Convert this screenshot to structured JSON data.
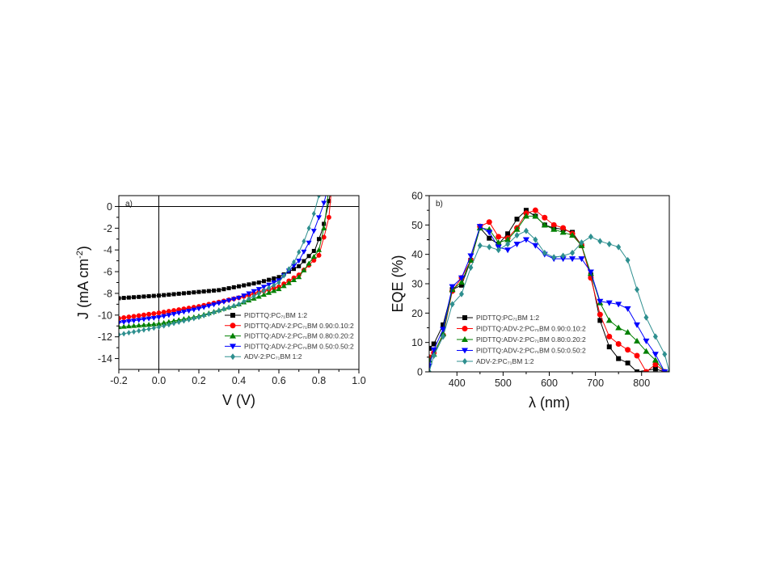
{
  "chart_data": [
    {
      "type": "line",
      "panel_label": "a)",
      "xlabel": "V (V)",
      "ylabel": "J (mA cm",
      "ylabel_sup": "-2",
      "ylabel_end": ")",
      "xlim": [
        -0.2,
        1.0
      ],
      "ylim": [
        -15,
        1
      ],
      "xticks": [
        -0.2,
        0.0,
        0.2,
        0.4,
        0.6,
        0.8,
        1.0
      ],
      "xtick_labels": [
        "-0.2",
        "0.0",
        "0.2",
        "0.4",
        "0.6",
        "0.8",
        "1.0"
      ],
      "yticks": [
        0,
        -2,
        -4,
        -6,
        -8,
        -10,
        -12,
        -14
      ],
      "ytick_labels": [
        "0",
        "-2",
        "-4",
        "-6",
        "-8",
        "-10",
        "-12",
        "-14"
      ],
      "zero_lines": true,
      "grid": false,
      "legend_position": "bottom-right",
      "series": [
        {
          "name": "PIDTTQ:PC₇₁BM 1:2",
          "color": "#000000",
          "marker": "square",
          "x": [
            -0.2,
            0.0,
            0.3,
            0.5,
            0.6,
            0.7,
            0.78,
            0.82,
            0.845,
            0.855
          ],
          "y": [
            -8.45,
            -8.2,
            -7.7,
            -7.0,
            -6.5,
            -5.5,
            -4.0,
            -2.0,
            0.0,
            1.0
          ]
        },
        {
          "name": "PIDTTQ:ADV-2:PC₇₁BM 0.90:0.10:2",
          "color": "#ff0000",
          "marker": "circle",
          "x": [
            -0.2,
            0.0,
            0.2,
            0.4,
            0.6,
            0.7,
            0.8,
            0.83,
            0.85,
            0.855,
            0.86
          ],
          "y": [
            -10.3,
            -9.8,
            -9.2,
            -8.4,
            -7.4,
            -6.3,
            -4.5,
            -2.5,
            -1.0,
            0.0,
            1.0
          ]
        },
        {
          "name": "PIDTTQ:ADV-2:PC₇₁BM 0.80:0.20:2",
          "color": "#008000",
          "marker": "triangle-up",
          "x": [
            -0.2,
            0.0,
            0.2,
            0.4,
            0.6,
            0.7,
            0.8,
            0.825,
            0.84,
            0.845
          ],
          "y": [
            -11.1,
            -10.8,
            -10.1,
            -9.0,
            -7.6,
            -6.5,
            -4.0,
            -2.0,
            0.0,
            1.0
          ]
        },
        {
          "name": "PIDTTQ:ADV-2:PC₇₁BM 0.50:0.50:2",
          "color": "#0000ff",
          "marker": "triangle-down",
          "x": [
            -0.2,
            0.0,
            0.2,
            0.4,
            0.6,
            0.7,
            0.76,
            0.8,
            0.82,
            0.835
          ],
          "y": [
            -10.7,
            -10.2,
            -9.4,
            -8.4,
            -6.8,
            -5.0,
            -3.0,
            -1.0,
            0.0,
            1.0
          ]
        },
        {
          "name": "ADV-2:PC₇₁BM 1:2",
          "color": "#2e8f8f",
          "marker": "diamond",
          "x": [
            -0.2,
            0.0,
            0.2,
            0.4,
            0.6,
            0.68,
            0.73,
            0.77,
            0.785,
            0.8
          ],
          "y": [
            -11.8,
            -11.1,
            -10.2,
            -9.0,
            -7.0,
            -5.0,
            -3.0,
            -1.0,
            0.0,
            1.0
          ]
        }
      ]
    },
    {
      "type": "line",
      "panel_label": "b)",
      "xlabel": "λ (nm)",
      "ylabel": "EQE (%)",
      "xlim": [
        340,
        860
      ],
      "ylim": [
        0,
        60
      ],
      "xticks": [
        400,
        500,
        600,
        700,
        800
      ],
      "xtick_labels": [
        "400",
        "500",
        "600",
        "700",
        "800"
      ],
      "yticks": [
        0,
        10,
        20,
        30,
        40,
        50,
        60
      ],
      "ytick_labels": [
        "0",
        "10",
        "20",
        "30",
        "40",
        "50",
        "60"
      ],
      "grid": false,
      "legend_position": "bottom-left",
      "series": [
        {
          "name": "PIDTTQ:PC₇₁BM 1:2",
          "color": "#000000",
          "marker": "square",
          "x": [
            340,
            350,
            370,
            390,
            410,
            430,
            450,
            470,
            490,
            510,
            530,
            550,
            570,
            590,
            610,
            630,
            650,
            670,
            690,
            710,
            730,
            750,
            770,
            790,
            830,
            850
          ],
          "y": [
            8,
            9.5,
            16,
            28,
            29.5,
            38,
            49,
            45.5,
            43.5,
            47,
            52,
            55,
            53,
            50,
            49,
            48.5,
            47.5,
            43,
            33,
            17.5,
            8.5,
            4.5,
            3,
            0,
            1,
            0
          ]
        },
        {
          "name": "PIDTTQ:ADV-2:PC₇₁BM 0.90:0.10:2",
          "color": "#ff0000",
          "marker": "circle",
          "x": [
            340,
            350,
            370,
            390,
            410,
            430,
            450,
            470,
            490,
            510,
            530,
            550,
            570,
            590,
            610,
            630,
            650,
            670,
            690,
            710,
            730,
            750,
            770,
            790,
            810,
            830,
            850
          ],
          "y": [
            5,
            6.5,
            12.5,
            27.5,
            32,
            38,
            49.5,
            51,
            46,
            45.5,
            49,
            54,
            55,
            52.5,
            50,
            49,
            47,
            43,
            32,
            19.5,
            12,
            9.5,
            7.5,
            5.5,
            0,
            2.5,
            0
          ]
        },
        {
          "name": "PIDTTQ:ADV-2:PC₇₁BM 0.80:0.20:2",
          "color": "#008000",
          "marker": "triangle-up",
          "x": [
            340,
            350,
            370,
            390,
            410,
            430,
            450,
            470,
            490,
            510,
            530,
            550,
            570,
            590,
            610,
            630,
            650,
            670,
            690,
            710,
            730,
            750,
            770,
            790,
            810,
            830,
            850
          ],
          "y": [
            4,
            6,
            13,
            28,
            30.5,
            38,
            49,
            48.5,
            44,
            45,
            48.5,
            53,
            53,
            50,
            48.5,
            47.5,
            46.5,
            43,
            33.5,
            23.5,
            17.5,
            15,
            13.5,
            10.5,
            7,
            4,
            0
          ]
        },
        {
          "name": "PIDTTQ:ADV-2:PC₇₁BM 0.50:0.50:2",
          "color": "#0000ff",
          "marker": "triangle-down",
          "x": [
            340,
            350,
            370,
            390,
            410,
            430,
            450,
            470,
            490,
            510,
            530,
            550,
            570,
            590,
            610,
            630,
            650,
            670,
            690,
            710,
            730,
            750,
            770,
            790,
            810,
            830,
            850
          ],
          "y": [
            2,
            7.5,
            14.5,
            29,
            32,
            39.5,
            49.5,
            47.5,
            42.5,
            41.5,
            43.5,
            45,
            43,
            40,
            38.5,
            38.5,
            38.5,
            38.5,
            34,
            24,
            23.5,
            23,
            21.5,
            16,
            10.5,
            6,
            0
          ]
        },
        {
          "name": "ADV-2:PC₇₁BM 1:2",
          "color": "#2e8f8f",
          "marker": "diamond",
          "x": [
            340,
            350,
            370,
            390,
            410,
            430,
            450,
            470,
            490,
            510,
            530,
            550,
            570,
            590,
            610,
            630,
            650,
            670,
            690,
            710,
            730,
            750,
            770,
            790,
            810,
            830,
            850,
            860
          ],
          "y": [
            0,
            5.5,
            12,
            23,
            26.5,
            35.5,
            43,
            42.5,
            41.5,
            43.5,
            46.5,
            48,
            45,
            40.5,
            39,
            39.5,
            40.5,
            44,
            46,
            44.5,
            43.5,
            42.5,
            38,
            28,
            18.5,
            12,
            6,
            0
          ]
        }
      ]
    }
  ]
}
